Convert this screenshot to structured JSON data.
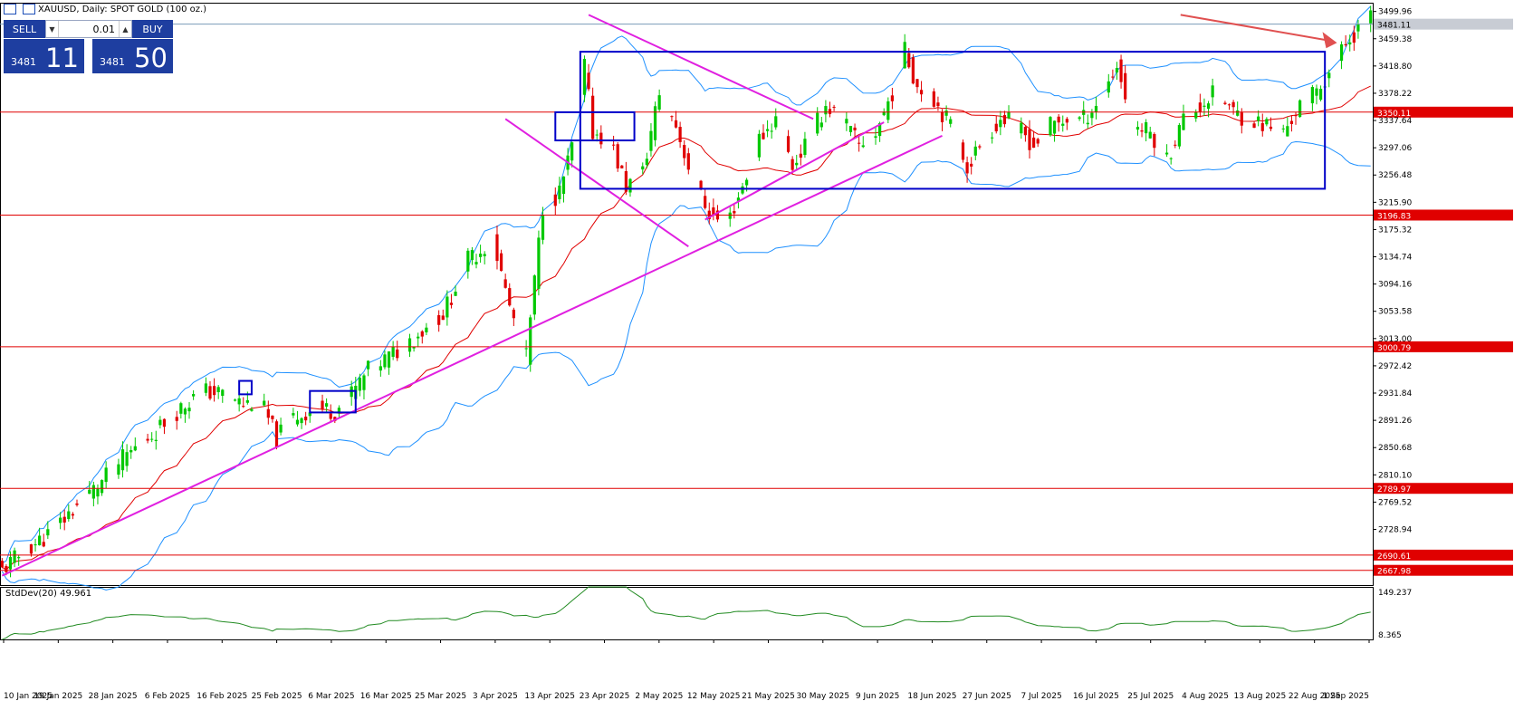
{
  "header": {
    "title": "XAUUSD, Daily:  SPOT GOLD (100 oz.)",
    "menu_icon": "grid-menu-icon",
    "window_icon": "window-icon"
  },
  "trade_panel": {
    "sell_label": "SELL",
    "buy_label": "BUY",
    "lot_value": "0.01",
    "decrement_icon": "triangle-down-icon",
    "increment_icon": "triangle-up-icon",
    "sell_price_small": "3481",
    "sell_price_big": "11",
    "buy_price_small": "3481",
    "buy_price_big": "50"
  },
  "indicator": {
    "label": "StdDev(20) 49.961",
    "scale_top": "149.237",
    "scale_bottom": "8.365"
  },
  "colors": {
    "bull": "#00c800",
    "bear": "#e00000",
    "hline": "#e00000",
    "bands": "#1e90ff",
    "ma": "#e00000",
    "trend": "#e020e0",
    "box": "#0000c8",
    "arrow": "#e05050",
    "stddev": "#228b22"
  },
  "chart_data": {
    "type": "candlestick",
    "symbol": "XAUUSD",
    "timeframe": "Daily",
    "last_price": 3481.11,
    "y_axis_ticks": [
      "3499.96",
      "3459.38",
      "3418.80",
      "3378.22",
      "3337.64",
      "3297.06",
      "3256.48",
      "3215.90",
      "3175.32",
      "3134.74",
      "3094.16",
      "3053.58",
      "3013.00",
      "2972.42",
      "2931.84",
      "2891.26",
      "2850.68",
      "2810.10",
      "2769.52",
      "2728.94"
    ],
    "ylim": [
      2646,
      3513
    ],
    "x_axis_labels": [
      "10 Jan 2025",
      "19 Jan 2025",
      "28 Jan 2025",
      "6 Feb 2025",
      "16 Feb 2025",
      "25 Feb 2025",
      "6 Mar 2025",
      "16 Mar 2025",
      "25 Mar 2025",
      "3 Apr 2025",
      "13 Apr 2025",
      "23 Apr 2025",
      "2 May 2025",
      "12 May 2025",
      "21 May 2025",
      "30 May 2025",
      "9 Jun 2025",
      "18 Jun 2025",
      "27 Jun 2025",
      "7 Jul 2025",
      "16 Jul 2025",
      "25 Jul 2025",
      "4 Aug 2025",
      "13 Aug 2025",
      "22 Aug 2025",
      "1 Sep 2025"
    ],
    "horizontal_levels": [
      {
        "price": 3481.11,
        "label": "3481.11",
        "kind": "current"
      },
      {
        "price": 3350.11,
        "label": "3350.11",
        "kind": "level"
      },
      {
        "price": 3196.83,
        "label": "3196.83",
        "kind": "level"
      },
      {
        "price": 3000.79,
        "label": "3000.79",
        "kind": "level"
      },
      {
        "price": 2789.97,
        "label": "2789.97",
        "kind": "level"
      },
      {
        "price": 2690.61,
        "label": "2690.61",
        "kind": "level"
      },
      {
        "price": 2667.98,
        "label": "2667.98",
        "kind": "level"
      }
    ],
    "close_anchors": [
      [
        0,
        2668
      ],
      [
        6,
        2700
      ],
      [
        12,
        2725
      ],
      [
        18,
        2765
      ],
      [
        24,
        2800
      ],
      [
        30,
        2840
      ],
      [
        36,
        2870
      ],
      [
        42,
        2905
      ],
      [
        48,
        2935
      ],
      [
        54,
        2930
      ],
      [
        58,
        2915
      ],
      [
        62,
        2920
      ],
      [
        66,
        2865
      ],
      [
        70,
        2895
      ],
      [
        76,
        2910
      ],
      [
        80,
        2905
      ],
      [
        84,
        2930
      ],
      [
        88,
        2965
      ],
      [
        94,
        2990
      ],
      [
        100,
        3020
      ],
      [
        106,
        3050
      ],
      [
        112,
        3130
      ],
      [
        118,
        3160
      ],
      [
        122,
        3060
      ],
      [
        126,
        2985
      ],
      [
        130,
        3210
      ],
      [
        134,
        3230
      ],
      [
        138,
        3320
      ],
      [
        140,
        3420
      ],
      [
        142,
        3320
      ],
      [
        146,
        3310
      ],
      [
        150,
        3240
      ],
      [
        154,
        3260
      ],
      [
        158,
        3380
      ],
      [
        162,
        3330
      ],
      [
        166,
        3250
      ],
      [
        170,
        3200
      ],
      [
        174,
        3180
      ],
      [
        178,
        3240
      ],
      [
        182,
        3310
      ],
      [
        186,
        3340
      ],
      [
        190,
        3270
      ],
      [
        194,
        3310
      ],
      [
        198,
        3360
      ],
      [
        202,
        3340
      ],
      [
        206,
        3300
      ],
      [
        210,
        3320
      ],
      [
        214,
        3380
      ],
      [
        217,
        3440
      ],
      [
        220,
        3390
      ],
      [
        224,
        3370
      ],
      [
        228,
        3330
      ],
      [
        232,
        3270
      ],
      [
        236,
        3310
      ],
      [
        240,
        3340
      ],
      [
        244,
        3330
      ],
      [
        248,
        3300
      ],
      [
        252,
        3330
      ],
      [
        256,
        3340
      ],
      [
        260,
        3340
      ],
      [
        264,
        3370
      ],
      [
        268,
        3420
      ],
      [
        272,
        3330
      ],
      [
        276,
        3320
      ],
      [
        280,
        3280
      ],
      [
        284,
        3340
      ],
      [
        288,
        3360
      ],
      [
        292,
        3380
      ],
      [
        296,
        3350
      ],
      [
        300,
        3340
      ],
      [
        304,
        3330
      ],
      [
        308,
        3320
      ],
      [
        312,
        3360
      ],
      [
        316,
        3380
      ],
      [
        320,
        3420
      ],
      [
        324,
        3460
      ],
      [
        328,
        3490
      ]
    ],
    "trend_lines": [
      {
        "from": [
          0,
          2660
        ],
        "to": [
          226,
          3315
        ]
      },
      {
        "from": [
          121,
          3340
        ],
        "to": [
          165,
          3150
        ]
      },
      {
        "from": [
          141,
          3495
        ],
        "to": [
          195,
          3340
        ]
      },
      {
        "from": [
          169,
          3190
        ],
        "to": [
          212,
          3335
        ]
      }
    ],
    "zones": [
      {
        "from": [
          139,
          3440
        ],
        "to": [
          318,
          3236
        ]
      },
      {
        "from": [
          133,
          3350
        ],
        "to": [
          152,
          3308
        ]
      },
      {
        "from": [
          74,
          2935
        ],
        "to": [
          85,
          2903
        ]
      },
      {
        "from": [
          57,
          2950
        ],
        "to": [
          60,
          2930
        ]
      }
    ],
    "stddev": {
      "name": "StdDev(20)",
      "last": 49.961,
      "ylim": [
        8.365,
        149.237
      ]
    }
  }
}
